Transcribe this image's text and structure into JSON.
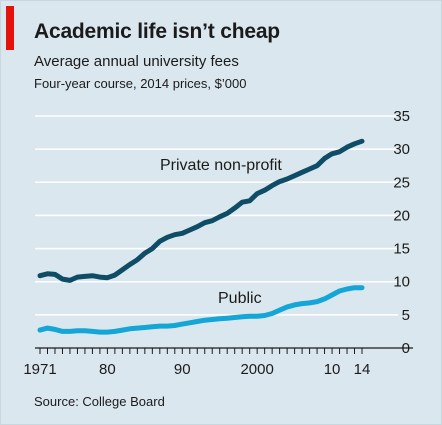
{
  "title": "Academic life isn’t cheap",
  "subtitle": "Average annual university fees",
  "units": "Four-year course, 2014 prices, $’000",
  "source": "Source: College Board",
  "colors": {
    "background": "#dbe7ee",
    "accent": "#e3120b",
    "private": "#0f4d66",
    "public": "#13a6d6",
    "grid": "#ffffff",
    "axis": "#1b1b1b"
  },
  "chart_data": {
    "type": "line",
    "xlabel": "",
    "ylabel": "",
    "xlim": [
      1971,
      2014
    ],
    "ylim": [
      0,
      35
    ],
    "grid": true,
    "y_axis_position": "right",
    "y_ticks": [
      0,
      5,
      10,
      15,
      20,
      25,
      30,
      35
    ],
    "x_ticks": [
      {
        "value": 1971,
        "label": "1971"
      },
      {
        "value": 1980,
        "label": "80"
      },
      {
        "value": 1990,
        "label": "90"
      },
      {
        "value": 2000,
        "label": "2000"
      },
      {
        "value": 2010,
        "label": "10"
      },
      {
        "value": 2014,
        "label": "14"
      }
    ],
    "x": [
      1971,
      1972,
      1973,
      1974,
      1975,
      1976,
      1977,
      1978,
      1979,
      1980,
      1981,
      1982,
      1983,
      1984,
      1985,
      1986,
      1987,
      1988,
      1989,
      1990,
      1991,
      1992,
      1993,
      1994,
      1995,
      1996,
      1997,
      1998,
      1999,
      2000,
      2001,
      2002,
      2003,
      2004,
      2005,
      2006,
      2007,
      2008,
      2009,
      2010,
      2011,
      2012,
      2013,
      2014
    ],
    "series": [
      {
        "name": "Private non-profit",
        "color": "#0f4d66",
        "values": [
          10.9,
          11.2,
          11.1,
          10.4,
          10.2,
          10.7,
          10.8,
          10.9,
          10.7,
          10.6,
          11.0,
          11.8,
          12.6,
          13.3,
          14.3,
          15.0,
          16.1,
          16.7,
          17.1,
          17.3,
          17.8,
          18.3,
          18.9,
          19.2,
          19.8,
          20.3,
          21.1,
          22.0,
          22.2,
          23.3,
          23.8,
          24.5,
          25.1,
          25.5,
          26.0,
          26.5,
          27.0,
          27.5,
          28.6,
          29.3,
          29.6,
          30.3,
          30.8,
          31.2
        ]
      },
      {
        "name": "Public",
        "color": "#13a6d6",
        "values": [
          2.7,
          3.0,
          2.8,
          2.5,
          2.5,
          2.6,
          2.6,
          2.5,
          2.4,
          2.4,
          2.5,
          2.7,
          2.9,
          3.0,
          3.1,
          3.2,
          3.3,
          3.3,
          3.4,
          3.6,
          3.8,
          4.0,
          4.2,
          4.3,
          4.4,
          4.5,
          4.6,
          4.7,
          4.8,
          4.8,
          4.9,
          5.2,
          5.7,
          6.2,
          6.5,
          6.7,
          6.8,
          7.0,
          7.4,
          8.0,
          8.6,
          8.9,
          9.1,
          9.1
        ]
      }
    ],
    "annotations": [
      {
        "text": "Private non-profit",
        "series": 0
      },
      {
        "text": "Public",
        "series": 1
      }
    ]
  }
}
